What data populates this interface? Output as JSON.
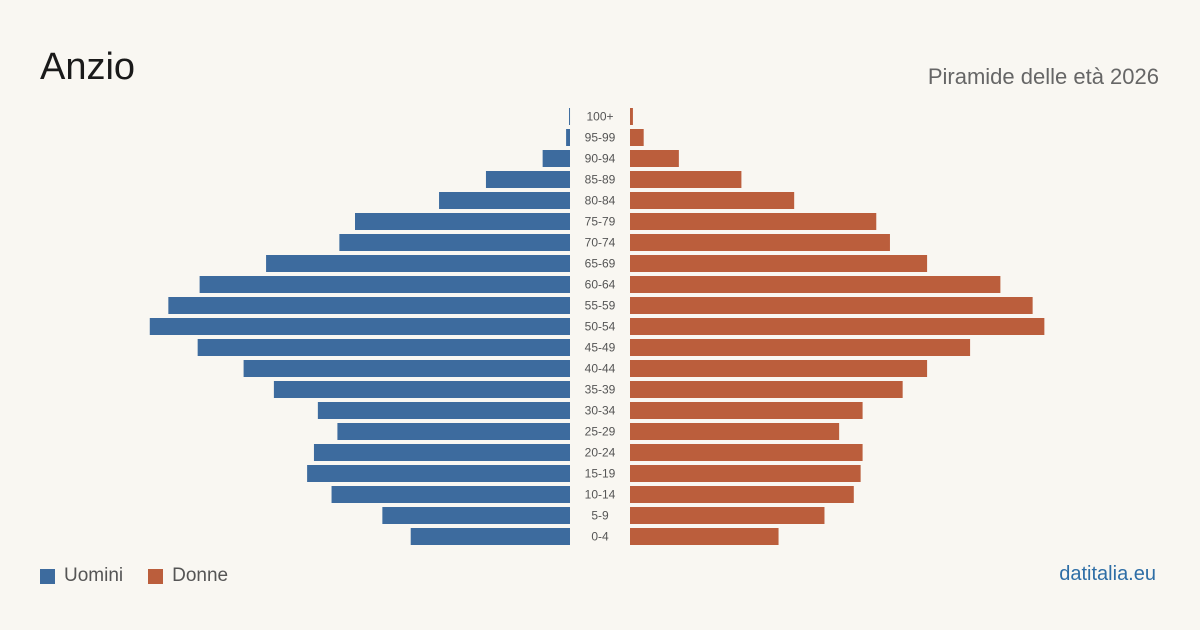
{
  "header": {
    "title": "Anzio",
    "subtitle": "Piramide delle età 2026"
  },
  "legend": {
    "men_label": "Uomini",
    "women_label": "Donne"
  },
  "footer": {
    "source": "datitalia.eu"
  },
  "colors": {
    "men": "#3d6b9e",
    "women": "#bb5e3c",
    "background": "#f9f7f2",
    "label": "#555555"
  },
  "chart_data": {
    "type": "bar",
    "orientation": "horizontal-pyramid",
    "categories": [
      "100+",
      "95-99",
      "90-94",
      "85-89",
      "80-84",
      "75-79",
      "70-74",
      "65-69",
      "60-64",
      "55-59",
      "50-54",
      "45-49",
      "40-44",
      "35-39",
      "30-34",
      "25-29",
      "20-24",
      "15-19",
      "10-14",
      "5-9",
      "0-4"
    ],
    "series": [
      {
        "name": "Uomini",
        "values": [
          1,
          4,
          28,
          86,
          134,
          220,
          236,
          311,
          379,
          411,
          430,
          381,
          334,
          303,
          258,
          238,
          262,
          269,
          244,
          192,
          163
        ]
      },
      {
        "name": "Donne",
        "values": [
          3,
          14,
          50,
          114,
          168,
          252,
          266,
          304,
          379,
          412,
          424,
          348,
          304,
          279,
          238,
          214,
          238,
          236,
          229,
          199,
          152
        ]
      }
    ],
    "xlim": [
      0,
      440
    ],
    "grid": false,
    "legend_position": "bottom-left"
  }
}
